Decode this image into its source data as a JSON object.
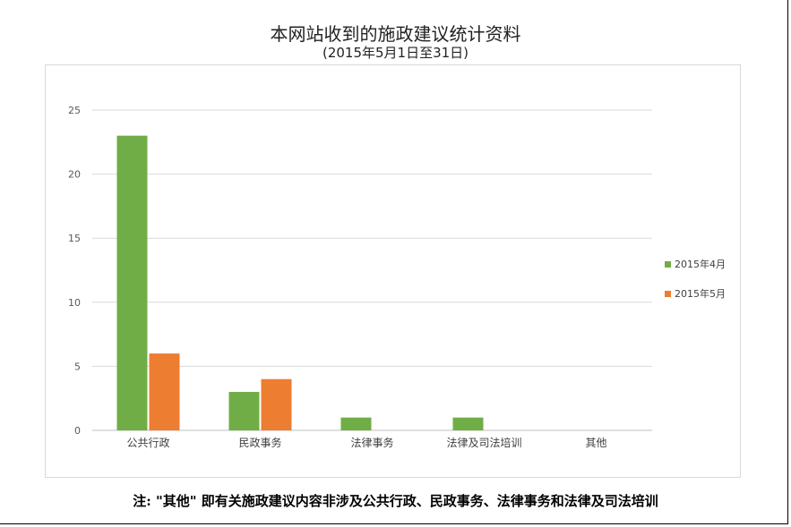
{
  "chart_data": {
    "type": "bar",
    "title": "本网站收到的施政建议统计资料",
    "subtitle": "(2015年5月1日至31日)",
    "categories": [
      "公共行政",
      "民政事务",
      "法律事务",
      "法律及司法培训",
      "其他"
    ],
    "series": [
      {
        "name": "2015年4月",
        "values": [
          23,
          3,
          1,
          1,
          0
        ],
        "color": "#70ad47"
      },
      {
        "name": "2015年5月",
        "values": [
          6,
          4,
          0,
          0,
          0
        ],
        "color": "#ed7d31"
      }
    ],
    "ylim": [
      0,
      25
    ],
    "yticks": [
      0,
      5,
      10,
      15,
      20,
      25
    ],
    "grid": true,
    "legend_position": "right"
  },
  "note": "注: \"其他\" 即有关施政建议内容非涉及公共行政、民政事务、法律事务和法律及司法培训"
}
